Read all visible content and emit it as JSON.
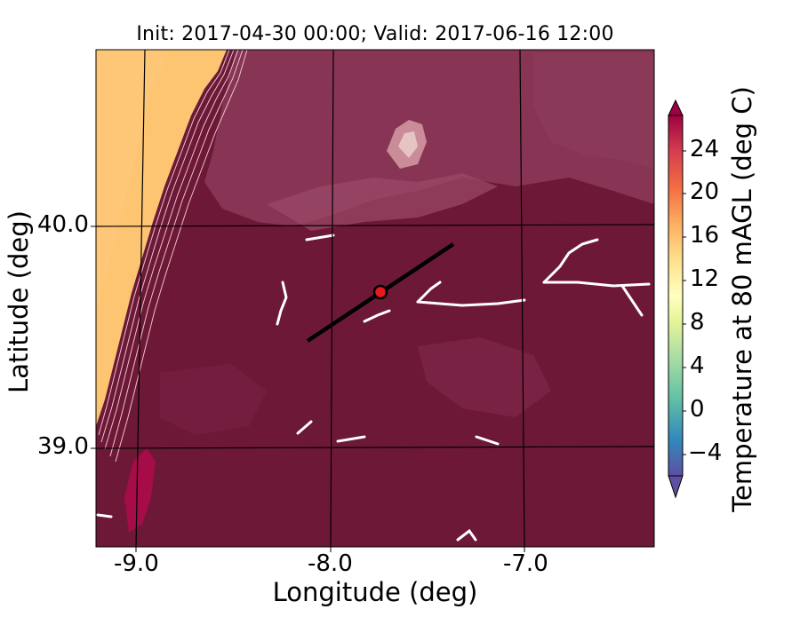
{
  "title": "Init: 2017-04-30 00:00; Valid: 2017-06-16 12:00",
  "axes": {
    "xlabel": "Longitude (deg)",
    "ylabel": "Latitude (deg)",
    "xticks": [
      "-9.0",
      "-8.0",
      "-7.0"
    ],
    "yticks": [
      "40.0",
      "39.0"
    ]
  },
  "colorbar": {
    "label": "Temperature at 80 mAGL (deg C)",
    "ticks": [
      "24",
      "20",
      "16",
      "12",
      "8",
      "4",
      "0",
      "−4"
    ],
    "range": [
      -6,
      28
    ],
    "colormap": "Spectral_r"
  },
  "chart_data": {
    "type": "heatmap",
    "title": "Init: 2017-04-30 00:00; Valid: 2017-06-16 12:00",
    "xlabel": "Longitude (deg)",
    "ylabel": "Latitude (deg)",
    "xlim": [
      -9.2,
      -6.35
    ],
    "ylim": [
      38.55,
      40.8
    ],
    "field": "Temperature at 80 mAGL (deg C)",
    "ocean_temperature": 15,
    "land_temperature_range": [
      24,
      28
    ],
    "cross_section_line": {
      "start": [
        -8.12,
        39.5
      ],
      "end": [
        -7.37,
        39.9
      ]
    },
    "marker": {
      "lon": -7.75,
      "lat": 39.7,
      "color": "#e41a1c"
    }
  },
  "colors": {
    "land": "#6e1838",
    "ocean": "#fdc472",
    "highland": "#8c3a5a",
    "hot": "#a50c48",
    "marker": "#e41a1c"
  }
}
